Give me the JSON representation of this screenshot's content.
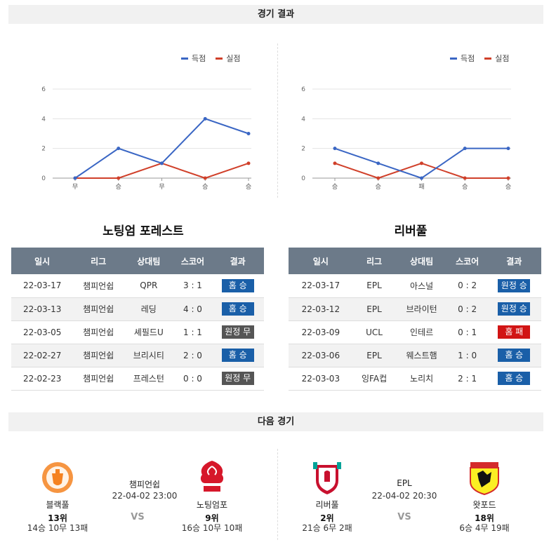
{
  "section_results_title": "경기 결과",
  "section_next_title": "다음 경기",
  "legend": {
    "scored": "득점",
    "conceded": "실점",
    "scored_color": "#3a66c4",
    "conceded_color": "#d0402a"
  },
  "charts": [
    {
      "team": "노팅엄 포레스트",
      "categories": [
        "무",
        "승",
        "무",
        "승",
        "승"
      ],
      "scored": [
        0,
        2,
        1,
        4,
        3
      ],
      "conceded": [
        0,
        0,
        1,
        0,
        1
      ],
      "yticks": [
        0,
        2,
        4,
        6
      ]
    },
    {
      "team": "리버풀",
      "categories": [
        "승",
        "승",
        "패",
        "승",
        "승"
      ],
      "scored": [
        2,
        1,
        0,
        2,
        2
      ],
      "conceded": [
        1,
        0,
        1,
        0,
        0
      ],
      "yticks": [
        0,
        2,
        4,
        6
      ]
    }
  ],
  "table_headers": [
    "일시",
    "리그",
    "상대팀",
    "스코어",
    "결과"
  ],
  "tables": [
    {
      "rows": [
        {
          "date": "22-03-17",
          "league": "챔피언쉽",
          "opponent": "QPR",
          "score": "3 : 1",
          "result": "홈 승",
          "result_color": "#1a5fa8"
        },
        {
          "date": "22-03-13",
          "league": "챔피언쉽",
          "opponent": "레딩",
          "score": "4 : 0",
          "result": "홈 승",
          "result_color": "#1a5fa8"
        },
        {
          "date": "22-03-05",
          "league": "챔피언쉽",
          "opponent": "셰필드U",
          "score": "1 : 1",
          "result": "원정 무",
          "result_color": "#555555"
        },
        {
          "date": "22-02-27",
          "league": "챔피언쉽",
          "opponent": "브리시티",
          "score": "2 : 0",
          "result": "홈 승",
          "result_color": "#1a5fa8"
        },
        {
          "date": "22-02-23",
          "league": "챔피언쉽",
          "opponent": "프레스턴",
          "score": "0 : 0",
          "result": "원정 무",
          "result_color": "#555555"
        }
      ]
    },
    {
      "rows": [
        {
          "date": "22-03-17",
          "league": "EPL",
          "opponent": "아스널",
          "score": "0 : 2",
          "result": "원정 승",
          "result_color": "#1a5fa8"
        },
        {
          "date": "22-03-12",
          "league": "EPL",
          "opponent": "브라이턴",
          "score": "0 : 2",
          "result": "원정 승",
          "result_color": "#1a5fa8"
        },
        {
          "date": "22-03-09",
          "league": "UCL",
          "opponent": "인테르",
          "score": "0 : 1",
          "result": "홈 패",
          "result_color": "#d11414"
        },
        {
          "date": "22-03-06",
          "league": "EPL",
          "opponent": "웨스트햄",
          "score": "1 : 0",
          "result": "홈 승",
          "result_color": "#1a5fa8"
        },
        {
          "date": "22-03-03",
          "league": "잉FA컵",
          "opponent": "노리치",
          "score": "2 : 1",
          "result": "홈 승",
          "result_color": "#1a5fa8"
        }
      ]
    }
  ],
  "next_matches": [
    {
      "league": "챔피언쉽",
      "datetime": "22-04-02 23:00",
      "vs": "VS",
      "home": {
        "name": "블랙풀",
        "rank": "13위",
        "record": "14승 10무 13패",
        "crest": "blackpool-crest"
      },
      "away": {
        "name": "노팅엄포",
        "rank": "9위",
        "record": "16승 10무 10패",
        "crest": "nottingham-forest-crest"
      }
    },
    {
      "league": "EPL",
      "datetime": "22-04-02 20:30",
      "vs": "VS",
      "home": {
        "name": "리버풀",
        "rank": "2위",
        "record": "21승 6무 2패",
        "crest": "liverpool-crest"
      },
      "away": {
        "name": "왓포드",
        "rank": "18위",
        "record": "6승 4무 19패",
        "crest": "watford-crest"
      }
    }
  ]
}
